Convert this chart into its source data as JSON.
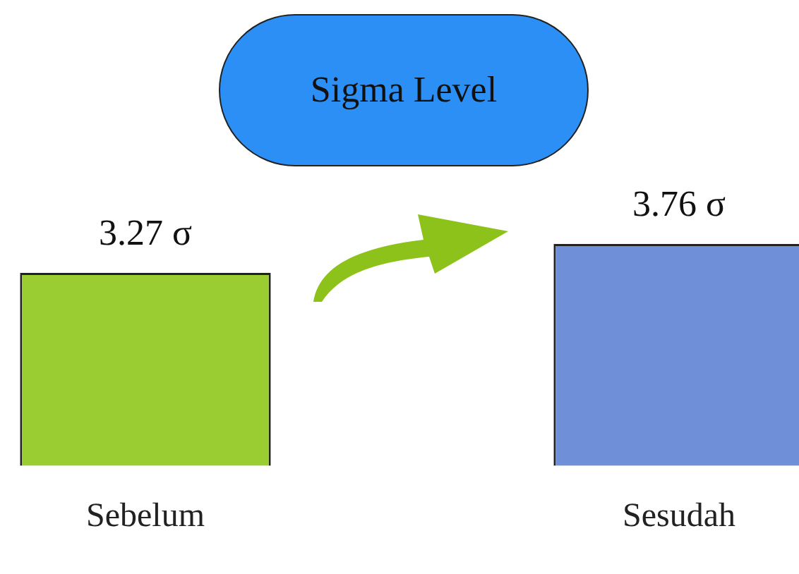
{
  "chart_data": {
    "type": "bar",
    "title": "Sigma Level",
    "categories": [
      "Sebelum",
      "Sesudah"
    ],
    "values": [
      3.27,
      3.76
    ],
    "colors": [
      "#9acd32",
      "#6f8fd8"
    ],
    "value_labels": [
      "3.27 σ",
      "3.76 σ"
    ],
    "grid": false,
    "tick_labels": "x",
    "legend": false
  }
}
